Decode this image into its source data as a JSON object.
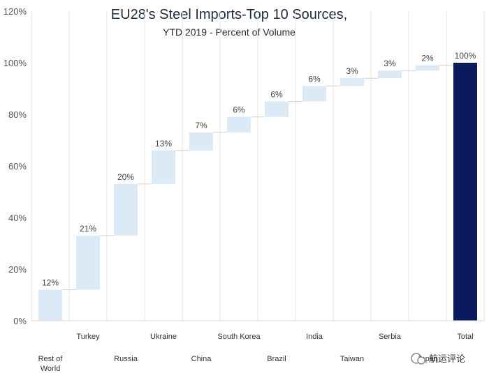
{
  "chart_data": {
    "type": "bar",
    "subtype": "waterfall",
    "title": "EU28's Steel Imports-Top 10 Sources,",
    "subtitle": "YTD 2019 - Percent of Volume",
    "categories": [
      "Rest of World",
      "Turkey",
      "Russia",
      "Ukraine",
      "China",
      "South Korea",
      "Brazil",
      "India",
      "Taiwan",
      "Serbia",
      "Japan",
      "Total"
    ],
    "category_label_lines": [
      [
        "Rest of",
        "World"
      ],
      [
        "Turkey"
      ],
      [
        "Russia"
      ],
      [
        "Ukraine"
      ],
      [
        "China"
      ],
      [
        "South Korea"
      ],
      [
        "Brazil"
      ],
      [
        "India"
      ],
      [
        "Taiwan"
      ],
      [
        "Serbia"
      ],
      [
        "Japan"
      ],
      [
        "Total"
      ]
    ],
    "values": [
      12,
      21,
      20,
      13,
      7,
      6,
      6,
      6,
      3,
      3,
      2,
      100
    ],
    "data_labels": [
      "12%",
      "21%",
      "20%",
      "13%",
      "7%",
      "6%",
      "6%",
      "6%",
      "3%",
      "3%",
      "2%",
      "100%"
    ],
    "bases": [
      0,
      12,
      33,
      53,
      66,
      73,
      79,
      85,
      91,
      94,
      97,
      0
    ],
    "yticks": [
      0,
      20,
      40,
      60,
      80,
      100,
      120
    ],
    "ytick_labels": [
      "0%",
      "20%",
      "40%",
      "60%",
      "80%",
      "100%",
      "120%"
    ],
    "ylim": [
      0,
      120
    ],
    "xlabel": "",
    "ylabel": "",
    "grid": "vertical",
    "legend": "none",
    "colors": {
      "increment": "#dce9f6",
      "total": "#0b1a5c",
      "connector": "#d0d0d0",
      "grid": "#e6e6e6"
    }
  },
  "watermark": {
    "text": "航运评论"
  }
}
